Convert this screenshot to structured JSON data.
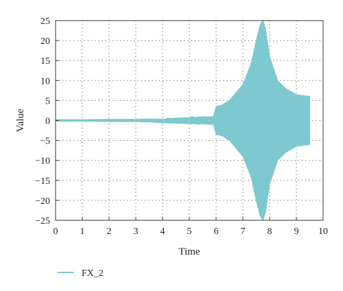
{
  "chart_data": {
    "type": "line",
    "xlabel": "Time",
    "ylabel": "Value",
    "xlim": [
      0,
      10
    ],
    "ylim": [
      -25,
      25
    ],
    "x_ticks": [
      0,
      1,
      2,
      3,
      4,
      5,
      6,
      7,
      8,
      9,
      10
    ],
    "x_tick_labels": [
      "0",
      "1",
      "2",
      "3",
      "4",
      "5",
      "6",
      "7",
      "8",
      "9",
      "10"
    ],
    "y_ticks": [
      25,
      20,
      15,
      10,
      5,
      0,
      -5,
      -10,
      -15,
      -20,
      -25
    ],
    "y_tick_labels": [
      "25",
      "20",
      "15",
      "10",
      "5",
      "0",
      "−5",
      "−10",
      "−15",
      "−20",
      "−25"
    ],
    "grid": true,
    "legend_position": "bottom-left",
    "series": [
      {
        "name": "FX_2",
        "color": "#7ec8cf",
        "envelope": {
          "x": [
            0,
            1,
            2,
            3,
            3.5,
            4,
            4.5,
            5,
            5.5,
            5.9,
            6,
            6.2,
            6.5,
            7,
            7.3,
            7.5,
            7.65,
            7.75,
            7.85,
            8.0,
            8.3,
            8.6,
            9.0,
            9.5
          ],
          "upper": [
            0.2,
            0.2,
            0.3,
            0.3,
            0.4,
            0.3,
            0.6,
            0.7,
            0.9,
            1.0,
            3.5,
            3.8,
            5,
            9,
            14,
            20,
            24,
            25,
            23,
            16,
            10,
            8,
            6.5,
            6
          ],
          "lower": [
            -0.2,
            -0.2,
            -0.3,
            -0.3,
            -0.4,
            -0.6,
            -0.7,
            -0.8,
            -0.9,
            -1.0,
            -3.5,
            -3.8,
            -5,
            -9,
            -14,
            -20,
            -24,
            -25,
            -23,
            -16,
            -10,
            -8,
            -6.5,
            -6
          ]
        }
      }
    ]
  }
}
